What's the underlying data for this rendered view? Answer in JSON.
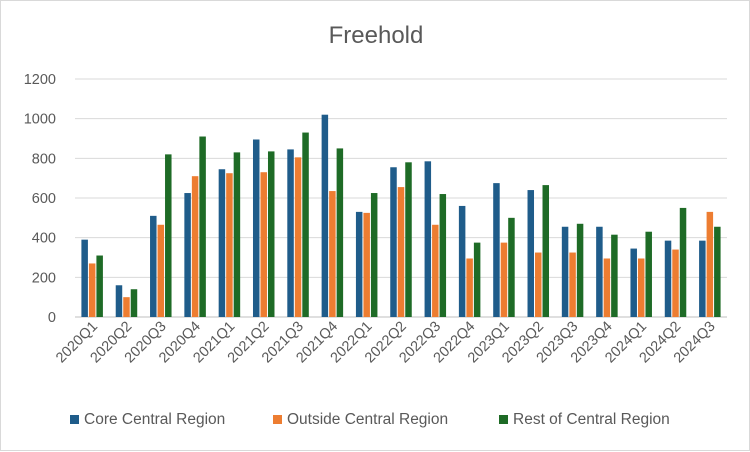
{
  "chart_data": {
    "type": "bar",
    "title": "Freehold",
    "xlabel": "",
    "ylabel": "",
    "ylim": [
      0,
      1200
    ],
    "yticks": [
      0,
      200,
      400,
      600,
      800,
      1000,
      1200
    ],
    "grid": true,
    "legend_position": "bottom",
    "categories": [
      "2020Q1",
      "2020Q2",
      "2020Q3",
      "2020Q4",
      "2021Q1",
      "2021Q2",
      "2021Q3",
      "2021Q4",
      "2022Q1",
      "2022Q2",
      "2022Q3",
      "2022Q4",
      "2023Q1",
      "2023Q2",
      "2023Q3",
      "2023Q4",
      "2024Q1",
      "2024Q2",
      "2024Q3"
    ],
    "series": [
      {
        "name": "Core Central Region",
        "color": "#1f5c8a",
        "values": [
          390,
          160,
          510,
          625,
          745,
          895,
          845,
          1020,
          530,
          755,
          785,
          560,
          675,
          640,
          455,
          455,
          345,
          385,
          385
        ]
      },
      {
        "name": "Outside Central Region",
        "color": "#ed7d31",
        "values": [
          270,
          100,
          465,
          710,
          725,
          730,
          805,
          635,
          525,
          655,
          465,
          295,
          375,
          325,
          325,
          295,
          295,
          340,
          530
        ]
      },
      {
        "name": "Rest of Central Region",
        "color": "#1e6b26",
        "values": [
          310,
          140,
          820,
          910,
          830,
          835,
          930,
          850,
          625,
          780,
          620,
          375,
          500,
          665,
          470,
          415,
          430,
          550,
          455
        ]
      }
    ]
  }
}
